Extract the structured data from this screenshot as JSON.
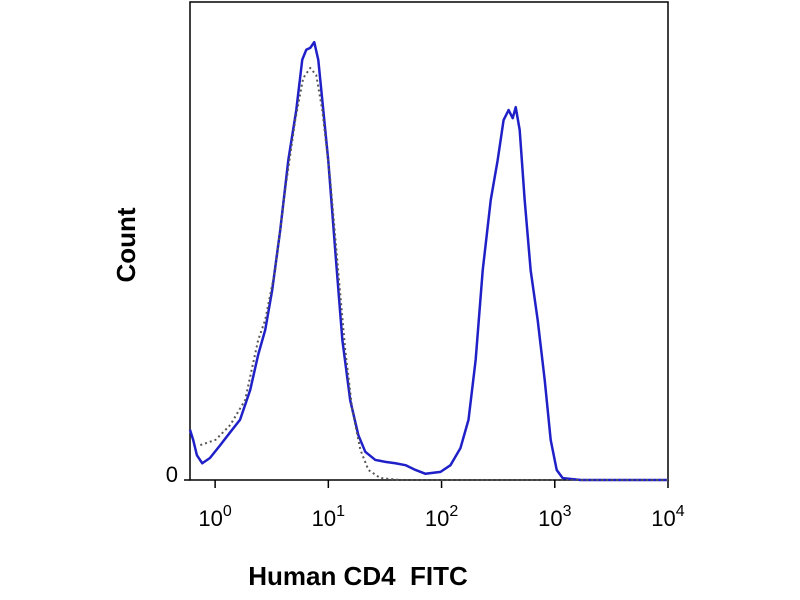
{
  "chart_data": {
    "type": "line",
    "x_label": "Human CD4  FITC",
    "y_label": "Count",
    "xscale": "log",
    "xlim": [
      0.6,
      10000
    ],
    "ylim": [
      0,
      100
    ],
    "xticks": [
      {
        "value": 1,
        "label": "10",
        "sup": "0"
      },
      {
        "value": 10,
        "label": "10",
        "sup": "1"
      },
      {
        "value": 100,
        "label": "10",
        "sup": "2"
      },
      {
        "value": 1000,
        "label": "10",
        "sup": "3"
      },
      {
        "value": 10000,
        "label": "10",
        "sup": "4"
      }
    ],
    "yticks": [
      0
    ],
    "series": [
      {
        "color": "#2020c8",
        "style": "solid",
        "x": [
          0.6,
          0.64,
          0.69,
          0.77,
          0.9,
          1.11,
          1.36,
          1.66,
          2.04,
          2.4,
          2.77,
          3.19,
          3.76,
          4.43,
          5.21,
          5.88,
          6.38,
          6.92,
          7.51,
          8.15,
          8.84,
          9.98,
          11.5,
          13.3,
          15.6,
          18.4,
          21.2,
          26,
          31.9,
          39.1,
          48,
          58.9,
          72.1,
          97.9,
          120,
          147,
          173,
          200,
          231,
          272,
          313,
          353,
          391,
          425,
          452,
          490,
          542,
          612,
          706,
          815,
          920,
          1040,
          1175,
          1694,
          10000
        ],
        "values": [
          10.5,
          8.4,
          5.2,
          3.5,
          4.6,
          7.3,
          10,
          12.6,
          18.8,
          26.2,
          31.4,
          39.7,
          52.3,
          66.9,
          77.4,
          87.9,
          90,
          90.4,
          91.6,
          87.9,
          79.5,
          66.9,
          48.1,
          29.3,
          16.7,
          9.4,
          5.9,
          4.2,
          3.8,
          3.5,
          3.1,
          2.1,
          1.3,
          1.7,
          3.1,
          6.7,
          12.6,
          25.1,
          43.9,
          58.6,
          66.9,
          75.3,
          77.4,
          75.7,
          78,
          73.2,
          58.6,
          43.9,
          33.5,
          20.9,
          8.4,
          2.1,
          0.4,
          0,
          0
        ]
      },
      {
        "color": "#555555",
        "style": "dotted",
        "x": [
          0.74,
          1.01,
          1.36,
          1.84,
          2.4,
          2.77,
          3.39,
          4.16,
          5.1,
          6,
          6.92,
          7.82,
          8.84,
          10.4,
          12.2,
          14.1,
          16.3,
          19.2,
          22.6,
          28.8,
          43.4,
          10000
        ],
        "values": [
          7.3,
          8.4,
          11.5,
          16.7,
          29.3,
          33.5,
          43.9,
          60.7,
          75.3,
          84.1,
          86.2,
          84.7,
          77.4,
          62.8,
          43.9,
          27.2,
          14.6,
          6.3,
          2.1,
          0.4,
          0,
          0
        ]
      }
    ]
  }
}
